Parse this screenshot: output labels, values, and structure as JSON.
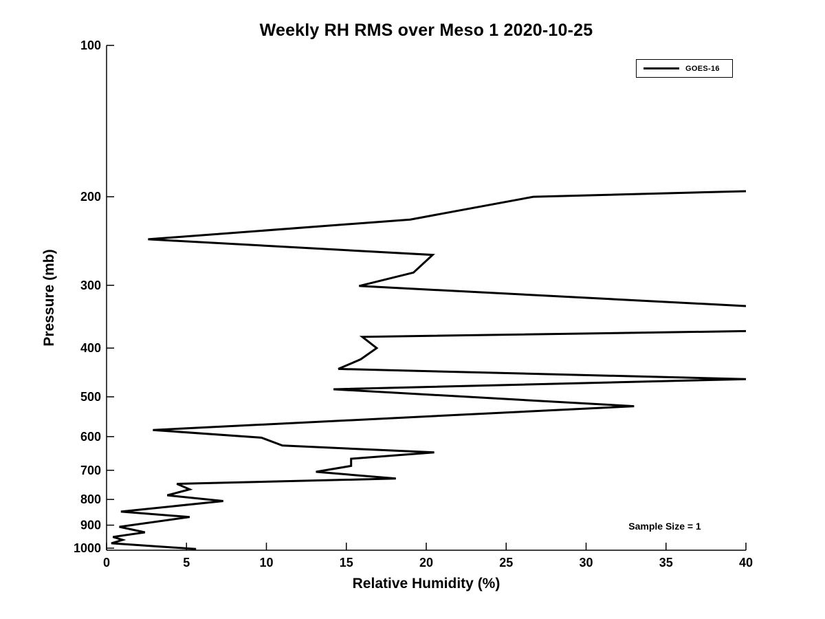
{
  "chart_data": {
    "type": "line",
    "title": "Weekly RH RMS over Meso 1 2020-10-25",
    "xlabel": "Relative Humidity (%)",
    "ylabel": "Pressure (mb)",
    "annotation": "Sample Size = 1",
    "x_ticks": [
      0,
      5,
      10,
      15,
      20,
      25,
      30,
      35,
      40
    ],
    "y_ticks": [
      100,
      200,
      300,
      400,
      500,
      600,
      700,
      800,
      900,
      1000
    ],
    "xlim": [
      0,
      40
    ],
    "ylim": [
      100,
      1010
    ],
    "y_scale": "log",
    "y_inverted": true,
    "grid": false,
    "legend_position": "top-right",
    "line_color": "#000000",
    "axis_color": "#000000",
    "line_width": 3,
    "series": [
      {
        "name": "GOES-16",
        "segments": [
          [
            [
              40,
              195
            ],
            [
              26.7,
              200
            ],
            [
              19.0,
              222
            ],
            [
              2.6,
              243
            ],
            [
              20.4,
              261
            ],
            [
              19.2,
              283
            ],
            [
              15.8,
              301
            ],
            [
              40,
              330
            ]
          ],
          [
            [
              40,
              370
            ],
            [
              16.0,
              380
            ],
            [
              16.9,
              400
            ],
            [
              15.9,
              421
            ],
            [
              14.5,
              440
            ],
            [
              40,
              461
            ],
            [
              14.2,
              483
            ],
            [
              33.0,
              522
            ],
            [
              2.9,
              582
            ],
            [
              9.7,
              603
            ],
            [
              11.0,
              625
            ],
            [
              20.5,
              645
            ],
            [
              15.3,
              664
            ],
            [
              15.3,
              686
            ],
            [
              13.1,
              705
            ],
            [
              18.1,
              727
            ],
            [
              4.4,
              745
            ],
            [
              5.2,
              764
            ],
            [
              3.8,
              785
            ],
            [
              7.3,
              806
            ],
            [
              0.9,
              846
            ],
            [
              5.2,
              867
            ],
            [
              0.8,
              907
            ],
            [
              2.4,
              930
            ],
            [
              0.4,
              950
            ],
            [
              1.0,
              963
            ],
            [
              0.3,
              978
            ],
            [
              5.6,
              1004
            ]
          ]
        ]
      }
    ]
  }
}
